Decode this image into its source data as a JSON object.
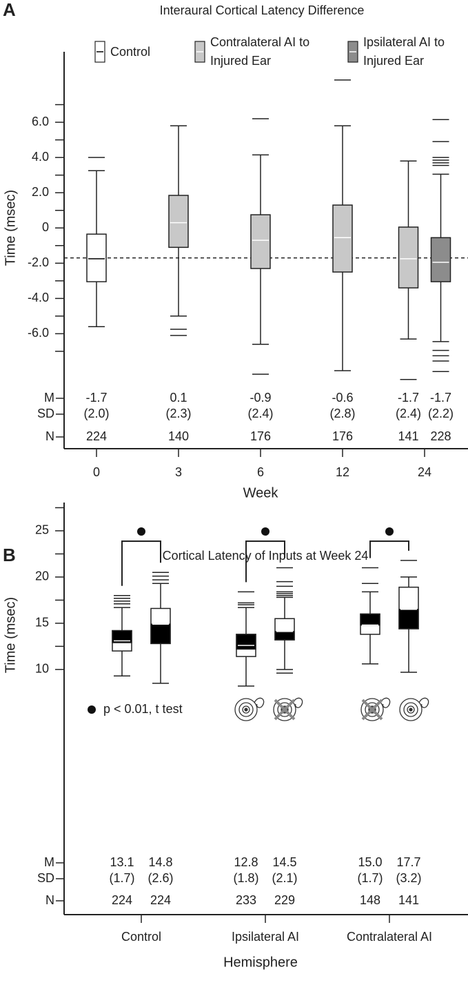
{
  "chart_data": [
    {
      "type": "box",
      "panel": "A",
      "title": "Interaural Cortical Latency Difference",
      "y_label": "Time (msec)",
      "x_label": "Week",
      "categories": [
        "0",
        "3",
        "6",
        "12",
        "24"
      ],
      "ylim": [
        -9,
        10
      ],
      "yticks": [
        {
          "value": 6,
          "label": "6.0"
        },
        {
          "value": 4,
          "label": "4.0"
        },
        {
          "value": 2,
          "label": "2.0"
        },
        0,
        {
          "value": -2,
          "label": "-2.0"
        },
        {
          "value": -4,
          "label": "-4.0"
        },
        {
          "value": -6,
          "label": "-6.0"
        }
      ],
      "yminorticks": [
        7,
        5,
        3,
        1,
        -1,
        -3,
        -5,
        -7
      ],
      "reference_line": -1.7,
      "legend": "top",
      "stat_labels": [
        "M",
        "SD",
        "N"
      ],
      "series": [
        {
          "name": "Control",
          "color": "#ffffff",
          "median_color": "#000000",
          "boxes": [
            {
              "low": -5.6,
              "q1": -3.05,
              "median": -1.75,
              "q3": -0.35,
              "high": 3.25,
              "outliers": [
                4.0
              ],
              "mean": "-1.7",
              "sd": "(2.0)",
              "n": 224
            },
            null,
            null,
            null,
            null
          ]
        },
        {
          "name": "Contralateral AI to Injured Ear",
          "color": "#c8c8c8",
          "median_color": "#ffffff",
          "boxes": [
            null,
            {
              "low": -5.0,
              "q1": -1.1,
              "median": 0.3,
              "q3": 1.85,
              "high": 5.8,
              "outliers": [
                -5.75,
                -6.1
              ],
              "mean": "0.1",
              "sd": "(2.3)",
              "n": 140
            },
            {
              "low": -6.6,
              "q1": -2.3,
              "median": -0.7,
              "q3": 0.75,
              "high": 4.15,
              "outliers": [
                6.2,
                -8.3
              ],
              "mean": "-0.9",
              "sd": "(2.4)",
              "n": 176
            },
            {
              "low": -8.1,
              "q1": -2.5,
              "median": -0.55,
              "q3": 1.3,
              "high": 5.8,
              "outliers": [
                8.4
              ],
              "mean": "-0.6",
              "sd": "(2.8)",
              "n": 176
            },
            {
              "low": -6.3,
              "q1": -3.4,
              "median": -1.75,
              "q3": 0.05,
              "high": 3.8,
              "outliers": [
                -8.6
              ],
              "mean": "-1.7",
              "sd": "(2.4)",
              "n": 141
            }
          ]
        },
        {
          "name": "Ipsilateral AI to Injured Ear",
          "color": "#8c8c8c",
          "median_color": "#ffffff",
          "boxes": [
            null,
            null,
            null,
            null,
            {
              "low": -6.45,
              "q1": -3.05,
              "median": -1.95,
              "q3": -0.55,
              "high": 3.05,
              "outliers": [
                6.15,
                4.9,
                4.0,
                3.85,
                3.7,
                3.55,
                -6.95,
                -7.25,
                -7.55,
                -8.15
              ],
              "mean": "-1.7",
              "sd": "(2.2)",
              "n": 228
            }
          ]
        }
      ]
    },
    {
      "type": "box",
      "panel": "B",
      "title": "Cortical Latency of Inputs at Week 24",
      "y_label": "Time (msec)",
      "x_label": "Hemisphere",
      "categories": [
        "Control",
        "Ipsilateral AI",
        "Contralateral AI"
      ],
      "ylim": [
        7,
        28
      ],
      "yticks": [
        25,
        20,
        15,
        10
      ],
      "yminorticks": [
        27.5,
        22.5,
        17.5,
        12.5
      ],
      "stat_labels": [
        "M",
        "SD",
        "N"
      ],
      "significance_note": "p < 0.01, t test",
      "significant": [
        true,
        true,
        true
      ],
      "series": [
        {
          "color": "#ffffff",
          "band_color": "#000000",
          "median_color": "#ffffff",
          "boxes": [
            {
              "low": 9.3,
              "q1": 12.0,
              "median": 13.1,
              "q3": 14.2,
              "high": 16.7,
              "band": [
                12.9,
                14.2
              ],
              "outliers": [
                18.0,
                17.7,
                17.4,
                17.1
              ],
              "mean": "13.1",
              "sd": "(1.7)",
              "n": 224
            },
            {
              "low": 8.2,
              "q1": 11.4,
              "median": 12.6,
              "q3": 13.8,
              "high": 16.7,
              "band": [
                12.2,
                13.8
              ],
              "outliers": [
                18.4,
                17.2,
                17.0
              ],
              "mean": "12.8",
              "sd": "(1.8)",
              "n": 233
            },
            {
              "low": 10.6,
              "q1": 13.8,
              "median": 14.8,
              "q3": 16.0,
              "high": 18.4,
              "band": [
                14.8,
                16.0
              ],
              "outliers": [
                21.0,
                19.3
              ],
              "mean": "15.0",
              "sd": "(1.7)",
              "n": 148
            }
          ]
        },
        {
          "color": "#ffffff",
          "band_color": "#000000",
          "median_color": "#ffffff",
          "boxes": [
            {
              "low": 8.5,
              "q1": 12.8,
              "median": 14.9,
              "q3": 16.6,
              "high": 19.3,
              "band": [
                12.8,
                14.9
              ],
              "outliers": [
                20.5,
                20.1,
                19.7
              ],
              "mean": "14.8",
              "sd": "(2.6)",
              "n": 224
            },
            {
              "low": 10.0,
              "q1": 13.2,
              "median": 14.1,
              "q3": 15.5,
              "high": 17.8,
              "band": [
                13.2,
                14.1
              ],
              "outliers": [
                21.0,
                19.5,
                19.0,
                18.4,
                18.2,
                18.0,
                9.6
              ],
              "mean": "14.5",
              "sd": "(2.1)",
              "n": 229
            },
            {
              "low": 9.7,
              "q1": 14.4,
              "median": 16.5,
              "q3": 18.9,
              "high": 20.0,
              "band": [
                14.4,
                16.5
              ],
              "outliers": [
                21.8
              ],
              "mean": "17.7",
              "sd": "(3.2)",
              "n": 141
            }
          ]
        }
      ]
    }
  ]
}
